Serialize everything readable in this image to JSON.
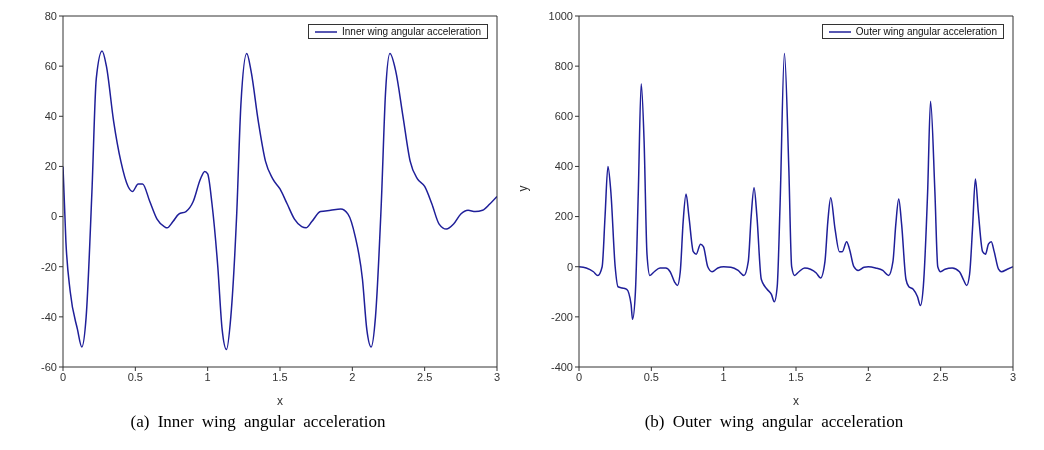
{
  "chart_data": [
    {
      "type": "line",
      "xlabel": "x",
      "annotations": [
        "(a) Inner wing angular acceleration"
      ],
      "xlim": [
        0,
        3
      ],
      "xticks": [
        0,
        0.5,
        1,
        1.5,
        2,
        2.5,
        3
      ],
      "ylim": [
        -60,
        80
      ],
      "yticks": [
        -60,
        -40,
        -20,
        0,
        20,
        40,
        60,
        80
      ],
      "grid": false,
      "legend": "top right",
      "marker": "none",
      "line_style": "solid",
      "series": [
        {
          "name": "Inner wing angular acceleration",
          "color": "#1f1f99",
          "x": [
            0,
            0.02,
            0.05,
            0.1,
            0.13,
            0.16,
            0.2,
            0.23,
            0.27,
            0.3,
            0.35,
            0.4,
            0.45,
            0.48,
            0.52,
            0.55,
            0.6,
            0.65,
            0.7,
            0.72,
            0.76,
            0.8,
            0.85,
            0.9,
            0.95,
            0.98,
            1.0,
            1.03,
            1.07,
            1.1,
            1.13,
            1.16,
            1.2,
            1.23,
            1.27,
            1.3,
            1.35,
            1.4,
            1.45,
            1.5,
            1.55,
            1.6,
            1.65,
            1.68,
            1.72,
            1.78,
            1.85,
            1.92,
            1.97,
            2.02,
            2.07,
            2.1,
            2.13,
            2.16,
            2.2,
            2.23,
            2.26,
            2.3,
            2.35,
            2.4,
            2.45,
            2.5,
            2.55,
            2.6,
            2.65,
            2.7,
            2.75,
            2.8,
            2.85,
            2.9,
            2.95,
            3.0
          ],
          "values": [
            20,
            -10,
            -30,
            -45,
            -52,
            -40,
            10,
            55,
            66,
            60,
            38,
            22,
            12,
            10,
            13,
            13,
            6,
            -1,
            -4,
            -4.5,
            -2,
            1,
            2,
            6,
            15,
            18,
            17,
            5,
            -20,
            -45,
            -53,
            -40,
            0,
            45,
            65,
            58,
            38,
            22,
            15,
            11,
            5,
            -1,
            -4,
            -4.5,
            -2,
            2,
            2.5,
            3,
            1,
            -8,
            -25,
            -45,
            -52,
            -40,
            5,
            50,
            65,
            58,
            40,
            22,
            15,
            12,
            5,
            -3,
            -5,
            -3,
            1,
            2.5,
            2,
            2.5,
            5,
            8
          ]
        }
      ]
    },
    {
      "type": "line",
      "xlabel": "x",
      "ylabel": "y",
      "annotations": [
        "(b) Outer wing angular acceleration"
      ],
      "xlim": [
        0,
        3
      ],
      "xticks": [
        0,
        0.5,
        1,
        1.5,
        2,
        2.5,
        3
      ],
      "ylim": [
        -400,
        1000
      ],
      "yticks": [
        -400,
        -200,
        0,
        200,
        400,
        600,
        800,
        1000
      ],
      "grid": false,
      "legend": "top right",
      "marker": "none",
      "line_style": "solid",
      "series": [
        {
          "name": "Outer wing angular acceleration",
          "color": "#1f1f99",
          "x": [
            0,
            0.05,
            0.1,
            0.13,
            0.16,
            0.18,
            0.2,
            0.22,
            0.25,
            0.27,
            0.3,
            0.33,
            0.36,
            0.37,
            0.39,
            0.41,
            0.43,
            0.45,
            0.47,
            0.49,
            0.52,
            0.56,
            0.6,
            0.63,
            0.66,
            0.68,
            0.7,
            0.72,
            0.74,
            0.76,
            0.79,
            0.81,
            0.84,
            0.86,
            0.89,
            0.92,
            0.96,
            1.0,
            1.05,
            1.1,
            1.14,
            1.17,
            1.19,
            1.21,
            1.23,
            1.26,
            1.3,
            1.33,
            1.35,
            1.37,
            1.39,
            1.42,
            1.45,
            1.47,
            1.49,
            1.52,
            1.56,
            1.6,
            1.64,
            1.67,
            1.7,
            1.72,
            1.74,
            1.77,
            1.8,
            1.82,
            1.85,
            1.87,
            1.9,
            1.93,
            1.97,
            2.0,
            2.05,
            2.1,
            2.14,
            2.17,
            2.19,
            2.21,
            2.23,
            2.26,
            2.28,
            2.31,
            2.34,
            2.36,
            2.38,
            2.41,
            2.43,
            2.46,
            2.48,
            2.5,
            2.53,
            2.58,
            2.63,
            2.66,
            2.68,
            2.7,
            2.72,
            2.74,
            2.76,
            2.79,
            2.81,
            2.83,
            2.85,
            2.87,
            2.9,
            2.92,
            2.96,
            3.0
          ],
          "values": [
            0,
            -5,
            -20,
            -35,
            0,
            200,
            400,
            300,
            0,
            -80,
            -85,
            -90,
            -150,
            -210,
            -100,
            300,
            730,
            500,
            50,
            -35,
            -20,
            -5,
            -5,
            -20,
            -60,
            -75,
            -20,
            180,
            290,
            200,
            60,
            50,
            90,
            80,
            0,
            -20,
            -5,
            0,
            -2,
            -15,
            -35,
            20,
            200,
            315,
            200,
            -50,
            -90,
            -110,
            -140,
            -80,
            250,
            850,
            400,
            0,
            -35,
            -20,
            -5,
            -10,
            -25,
            -45,
            20,
            180,
            275,
            150,
            60,
            60,
            100,
            70,
            0,
            -15,
            -2,
            0,
            -5,
            -15,
            -35,
            20,
            170,
            270,
            170,
            -50,
            -80,
            -90,
            -120,
            -155,
            -80,
            300,
            660,
            300,
            0,
            -20,
            -10,
            -5,
            -20,
            -55,
            -75,
            -30,
            150,
            350,
            220,
            60,
            50,
            90,
            100,
            60,
            -10,
            -20,
            -10,
            0
          ]
        }
      ]
    }
  ]
}
